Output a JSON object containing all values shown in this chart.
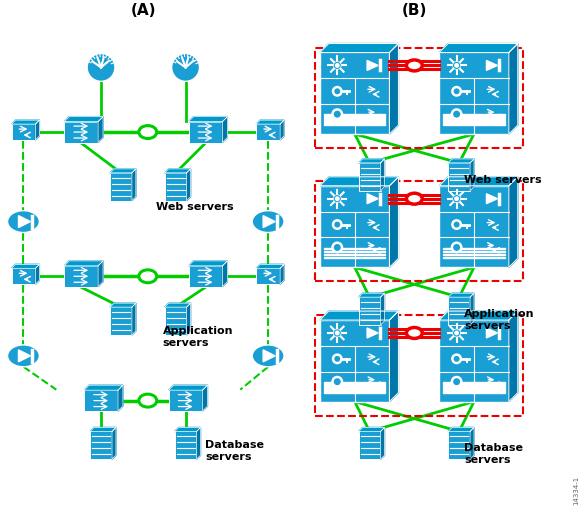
{
  "title_A": "(A)",
  "title_B": "(B)",
  "bg_color": "#ffffff",
  "cyan": "#1a9fd4",
  "cyan_dark": "#0077aa",
  "cyan_mid": "#0099cc",
  "green": "#00cc00",
  "red": "#ee0000",
  "black": "#000000",
  "white": "#ffffff",
  "label_web": "Web servers",
  "label_app": "Application\nservers",
  "label_db": "Database\nservers",
  "label_web2": "Web servers",
  "label_app2": "Application\nservers",
  "label_db2": "Database\nservers",
  "doc_num": "14334-1"
}
